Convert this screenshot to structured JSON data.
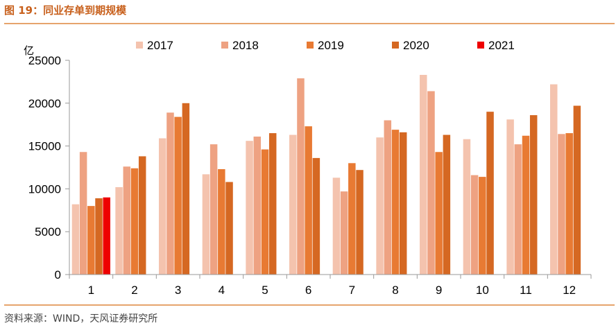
{
  "figure_title": "图 19：同业存单到期规模",
  "source_note": "资料来源：WIND，天风证券研究所",
  "chart_data": {
    "type": "bar",
    "unit_label": "亿",
    "categories": [
      "1",
      "2",
      "3",
      "4",
      "5",
      "6",
      "7",
      "8",
      "9",
      "10",
      "11",
      "12"
    ],
    "ylim": [
      0,
      25000
    ],
    "yticks": [
      "0",
      "5000",
      "10000",
      "15000",
      "20000",
      "25000"
    ],
    "grid": false,
    "legend_position": "top",
    "series": [
      {
        "name": "2017",
        "color": "#f4c3ae",
        "values": [
          8200,
          10200,
          15900,
          11700,
          15600,
          16300,
          11300,
          16000,
          23300,
          15800,
          18100,
          22200
        ]
      },
      {
        "name": "2018",
        "color": "#eea282",
        "values": [
          14300,
          12600,
          18900,
          15200,
          16100,
          22900,
          9700,
          18000,
          21400,
          11600,
          15200,
          16400
        ]
      },
      {
        "name": "2019",
        "color": "#e87a33",
        "values": [
          8000,
          12400,
          18400,
          12300,
          14600,
          17300,
          13000,
          16900,
          14300,
          11400,
          16200,
          16500
        ]
      },
      {
        "name": "2020",
        "color": "#d56822",
        "values": [
          8900,
          13800,
          20000,
          10800,
          16500,
          13600,
          12200,
          16600,
          16300,
          19000,
          18600,
          19700
        ]
      },
      {
        "name": "2021",
        "color": "#ee0000",
        "values": [
          9000,
          null,
          null,
          null,
          null,
          null,
          null,
          null,
          null,
          null,
          null,
          null
        ]
      }
    ]
  }
}
